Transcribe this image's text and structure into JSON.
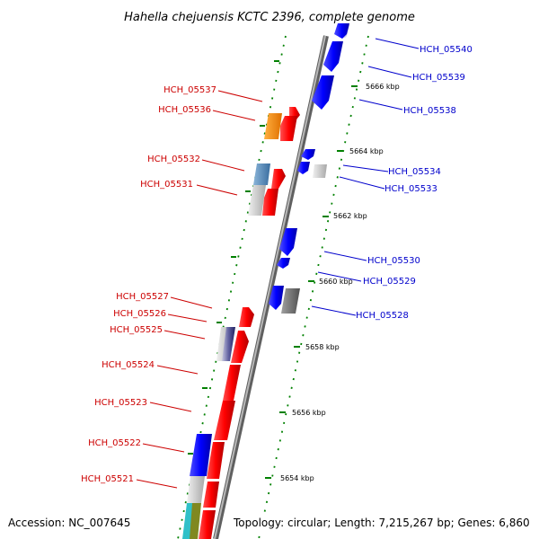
{
  "title": "Hahella chejuensis KCTC 2396, complete genome",
  "footer": {
    "accession": "Accession: NC_007645",
    "summary": "Topology: circular; Length: 7,215,267 bp; Genes: 6,860"
  },
  "ticks": [
    "5666 kbp",
    "5664 kbp",
    "5662 kbp",
    "5660 kbp",
    "5658 kbp",
    "5656 kbp",
    "5654 kbp"
  ],
  "genes_left": [
    "HCH_05537",
    "HCH_05536",
    "HCH_05532",
    "HCH_05531",
    "HCH_05527",
    "HCH_05526",
    "HCH_05525",
    "HCH_05524",
    "HCH_05523",
    "HCH_05522",
    "HCH_05521"
  ],
  "genes_right": [
    "HCH_05540",
    "HCH_05539",
    "HCH_05538",
    "HCH_05534",
    "HCH_05533",
    "HCH_05530",
    "HCH_05529",
    "HCH_05528"
  ],
  "colors": {
    "forward_strand": "#ff0000",
    "reverse_strand": "#0000ff",
    "forward_label": "#cc0000",
    "reverse_label": "#0000cc",
    "backbone": "#808080",
    "tick_marks": "#008000"
  }
}
